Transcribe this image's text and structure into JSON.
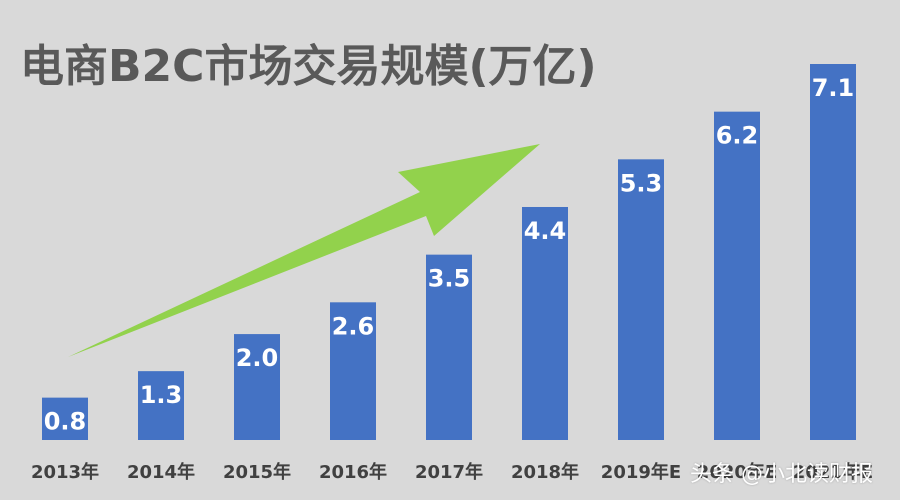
{
  "watermark": "头条 @小北读财报",
  "colors": {
    "background": "#d9d9d9",
    "bar": "#4472c4",
    "arrow": "#8ad03c",
    "title": "#595959",
    "label": "#ffffff",
    "tick": "#404040"
  },
  "chart_data": {
    "type": "bar",
    "title": "电商B2C市场交易规模(万亿)",
    "categories": [
      "2013年",
      "2014年",
      "2015年",
      "2016年",
      "2017年",
      "2018年",
      "2019年E",
      "2020年E",
      "2021年E"
    ],
    "values": [
      0.8,
      1.3,
      2.0,
      2.6,
      3.5,
      4.4,
      5.3,
      6.2,
      7.1
    ],
    "data_labels": [
      "0.8",
      "1.3",
      "2.0",
      "2.6",
      "3.5",
      "4.4",
      "5.3",
      "6.2",
      "7.1"
    ],
    "ylim": [
      0,
      7.1
    ],
    "xlabel": "",
    "ylabel": "",
    "grid": false,
    "legend": "none",
    "annotations": [
      "green upward arrow indicating growth trend"
    ]
  }
}
